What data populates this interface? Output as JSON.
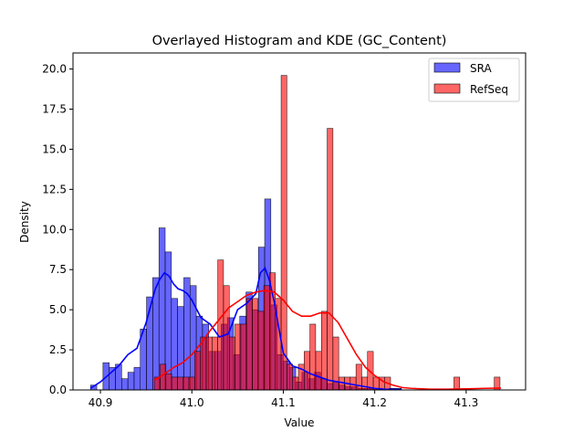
{
  "chart_data": {
    "type": "histogram",
    "title": "Overlayed Histogram and KDE (GC_Content)",
    "xlabel": "Value",
    "ylabel": "Density",
    "xlim": [
      40.87,
      41.365
    ],
    "ylim": [
      0,
      21.0
    ],
    "xticks": [
      40.9,
      41.0,
      41.1,
      41.2,
      41.3
    ],
    "xtick_labels": [
      "40.9",
      "41.0",
      "41.1",
      "41.2",
      "41.3"
    ],
    "yticks": [
      0,
      2.5,
      5,
      7.5,
      10,
      12.5,
      15,
      17.5,
      20
    ],
    "ytick_labels": [
      "0.0",
      "2.5",
      "5.0",
      "7.5",
      "10.0",
      "12.5",
      "15.0",
      "17.5",
      "20.0"
    ],
    "grid": false,
    "legend_position": "top-right",
    "series": [
      {
        "name": "SRA",
        "color": "#0000ff",
        "bin_width": 0.0068,
        "bins": [
          [
            40.8892,
            0.3
          ],
          [
            40.896,
            0.0
          ],
          [
            40.9028,
            1.7
          ],
          [
            40.9096,
            1.4
          ],
          [
            40.9164,
            1.6
          ],
          [
            40.9232,
            0.7
          ],
          [
            40.93,
            1.1
          ],
          [
            40.9368,
            1.4
          ],
          [
            40.9436,
            3.8
          ],
          [
            40.9504,
            5.8
          ],
          [
            40.9572,
            7.0
          ],
          [
            40.964,
            10.1
          ],
          [
            40.9708,
            8.6
          ],
          [
            40.9776,
            5.7
          ],
          [
            40.9844,
            5.2
          ],
          [
            40.9912,
            7.0
          ],
          [
            40.998,
            6.5
          ],
          [
            41.0048,
            4.6
          ],
          [
            41.0116,
            4.1
          ],
          [
            41.0184,
            2.4
          ],
          [
            41.0252,
            2.4
          ],
          [
            41.032,
            4.1
          ],
          [
            41.0388,
            4.5
          ],
          [
            41.0456,
            2.2
          ],
          [
            41.0524,
            4.6
          ],
          [
            41.0592,
            6.1
          ],
          [
            41.066,
            5.0
          ],
          [
            41.0728,
            8.9
          ],
          [
            41.0796,
            11.9
          ],
          [
            41.0864,
            5.3
          ],
          [
            41.0932,
            2.2
          ],
          [
            41.1,
            1.8
          ],
          [
            41.1068,
            1.4
          ],
          [
            41.1136,
            0.5
          ],
          [
            41.1204,
            1.1
          ],
          [
            41.1272,
            0.7
          ],
          [
            41.134,
            1.1
          ],
          [
            41.1408,
            0.7
          ],
          [
            41.1476,
            0.4
          ],
          [
            41.1544,
            0.5
          ],
          [
            41.1612,
            0.3
          ],
          [
            41.168,
            0.2
          ],
          [
            41.1748,
            0.2
          ],
          [
            41.1816,
            0.1
          ],
          [
            41.1884,
            0.1
          ],
          [
            41.1952,
            0.1
          ],
          [
            41.202,
            0.1
          ],
          [
            41.2088,
            0.0
          ],
          [
            41.2156,
            0.1
          ],
          [
            41.2224,
            0.1
          ]
        ],
        "kde": {
          "x": [
            40.889,
            40.9,
            40.91,
            40.92,
            40.93,
            40.94,
            40.95,
            40.96,
            40.965,
            40.97,
            40.975,
            40.98,
            40.985,
            40.99,
            40.995,
            41.0,
            41.01,
            41.02,
            41.03,
            41.04,
            41.05,
            41.06,
            41.07,
            41.075,
            41.08,
            41.085,
            41.09,
            41.1,
            41.11,
            41.12,
            41.13,
            41.14,
            41.15,
            41.16,
            41.17,
            41.18,
            41.19,
            41.2,
            41.21,
            41.229
          ],
          "y": [
            0.1,
            0.5,
            1.0,
            1.5,
            2.2,
            2.6,
            4.2,
            6.3,
            6.9,
            7.3,
            7.1,
            6.6,
            6.3,
            6.2,
            6.0,
            5.6,
            4.5,
            4.1,
            3.3,
            3.5,
            5.0,
            5.4,
            6.0,
            7.3,
            7.6,
            6.8,
            5.5,
            2.3,
            1.5,
            1.3,
            1.0,
            0.8,
            0.6,
            0.5,
            0.4,
            0.3,
            0.2,
            0.1,
            0.05,
            0.02
          ]
        }
      },
      {
        "name": "RefSeq",
        "color": "#ff0000",
        "bin_width": 0.0063,
        "bins": [
          [
            40.959,
            0.8
          ],
          [
            40.9653,
            1.6
          ],
          [
            40.9716,
            1.0
          ],
          [
            40.9779,
            0.8
          ],
          [
            40.9842,
            0.8
          ],
          [
            40.9905,
            0.8
          ],
          [
            40.9968,
            0.8
          ],
          [
            41.0031,
            2.4
          ],
          [
            41.0094,
            3.3
          ],
          [
            41.0157,
            3.3
          ],
          [
            41.022,
            3.3
          ],
          [
            41.0283,
            8.1
          ],
          [
            41.0346,
            6.5
          ],
          [
            41.0409,
            3.3
          ],
          [
            41.0472,
            4.1
          ],
          [
            41.0535,
            4.1
          ],
          [
            41.0598,
            5.7
          ],
          [
            41.0661,
            5.7
          ],
          [
            41.0724,
            4.9
          ],
          [
            41.0787,
            6.5
          ],
          [
            41.085,
            7.3
          ],
          [
            41.0913,
            5.7
          ],
          [
            41.0976,
            19.6
          ],
          [
            41.1039,
            1.6
          ],
          [
            41.1102,
            0.8
          ],
          [
            41.1165,
            1.6
          ],
          [
            41.1228,
            2.4
          ],
          [
            41.1291,
            4.1
          ],
          [
            41.1354,
            2.4
          ],
          [
            41.1417,
            4.9
          ],
          [
            41.148,
            16.3
          ],
          [
            41.1543,
            3.3
          ],
          [
            41.1606,
            0.8
          ],
          [
            41.1669,
            0.8
          ],
          [
            41.1732,
            0.8
          ],
          [
            41.1795,
            1.6
          ],
          [
            41.1858,
            0.8
          ],
          [
            41.1921,
            2.4
          ],
          [
            41.1984,
            0.8
          ],
          [
            41.2047,
            0.8
          ],
          [
            41.211,
            0.8
          ],
          [
            41.2173,
            0.0
          ],
          [
            41.2236,
            0.0
          ],
          [
            41.2299,
            0.0
          ],
          [
            41.2362,
            0.0
          ],
          [
            41.2425,
            0.0
          ],
          [
            41.2488,
            0.0
          ],
          [
            41.2551,
            0.0
          ],
          [
            41.2614,
            0.0
          ],
          [
            41.2677,
            0.0
          ],
          [
            41.274,
            0.0
          ],
          [
            41.2803,
            0.0
          ],
          [
            41.2866,
            0.8
          ],
          [
            41.2929,
            0.0
          ],
          [
            41.2992,
            0.0
          ],
          [
            41.3055,
            0.0
          ],
          [
            41.3118,
            0.0
          ],
          [
            41.3181,
            0.0
          ],
          [
            41.3244,
            0.0
          ],
          [
            41.3307,
            0.8
          ]
        ],
        "kde": {
          "x": [
            40.959,
            40.97,
            40.98,
            40.99,
            41.0,
            41.01,
            41.02,
            41.03,
            41.04,
            41.05,
            41.06,
            41.07,
            41.08,
            41.09,
            41.1,
            41.11,
            41.12,
            41.13,
            41.14,
            41.15,
            41.16,
            41.17,
            41.18,
            41.19,
            41.2,
            41.21,
            41.22,
            41.23,
            41.24,
            41.26,
            41.28,
            41.3,
            41.32,
            41.338
          ],
          "y": [
            0.6,
            1.0,
            1.4,
            1.7,
            2.2,
            2.9,
            3.7,
            4.4,
            5.1,
            5.5,
            5.9,
            6.1,
            6.2,
            6.1,
            5.6,
            4.9,
            4.6,
            4.6,
            4.8,
            4.8,
            4.2,
            3.2,
            2.2,
            1.4,
            0.9,
            0.5,
            0.3,
            0.15,
            0.1,
            0.05,
            0.05,
            0.07,
            0.1,
            0.12
          ]
        }
      }
    ]
  }
}
